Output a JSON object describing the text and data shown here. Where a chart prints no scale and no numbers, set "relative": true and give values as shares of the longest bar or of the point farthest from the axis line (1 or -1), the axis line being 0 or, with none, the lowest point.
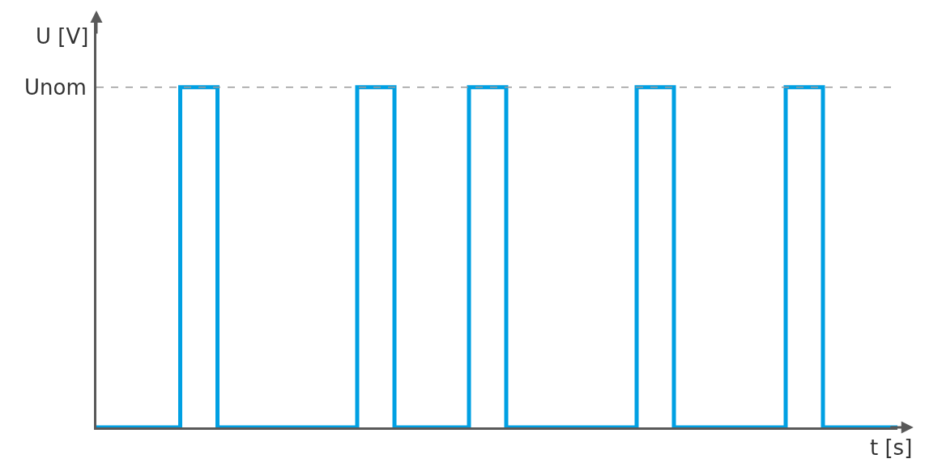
{
  "chart_data": {
    "type": "step",
    "relative": true,
    "xlabel": "t [s]",
    "ylabel": "U [V]",
    "marker": "none",
    "line_style": "solid",
    "categories": [
      null,
      null,
      null,
      null,
      null,
      null,
      null,
      null,
      null,
      null,
      null,
      null,
      null,
      null,
      null,
      null,
      null,
      null,
      null,
      null,
      null,
      null,
      null,
      null,
      null,
      null,
      null,
      null,
      null,
      null,
      null,
      null,
      null,
      null,
      null,
      null,
      null,
      null,
      null,
      null,
      null,
      null,
      null,
      null,
      null,
      null,
      null,
      null,
      null,
      null,
      null,
      null,
      null,
      null,
      null,
      null,
      null,
      null,
      null,
      null,
      null,
      null,
      null,
      null,
      null,
      null,
      null,
      null,
      null,
      null,
      null,
      null,
      null,
      null,
      null,
      null,
      null,
      null,
      null,
      null,
      null,
      null,
      null,
      null,
      null,
      null,
      null
    ],
    "series": [
      {
        "color": "#00a0e3",
        "values": [
          0,
          0,
          0,
          0,
          0,
          0,
          0,
          0,
          0,
          1,
          1,
          1,
          1,
          0,
          0,
          0,
          0,
          0,
          0,
          0,
          0,
          0,
          0,
          0,
          0,
          0,
          0,
          0,
          1,
          1,
          1,
          1,
          0,
          0,
          0,
          0,
          0,
          0,
          0,
          0,
          1,
          1,
          1,
          1,
          0,
          0,
          0,
          0,
          0,
          0,
          0,
          0,
          0,
          0,
          0,
          0,
          0,
          0,
          1,
          1,
          1,
          1,
          0,
          0,
          0,
          0,
          0,
          0,
          0,
          0,
          0,
          0,
          0,
          0,
          1,
          1,
          1,
          1,
          0,
          0,
          0,
          0,
          0,
          0,
          0,
          0,
          0
        ]
      }
    ],
    "ref_lines": [
      {
        "axis": "y",
        "value": 1,
        "label": "Unom",
        "color": "#999999",
        "line_style": "dashed"
      }
    ]
  }
}
